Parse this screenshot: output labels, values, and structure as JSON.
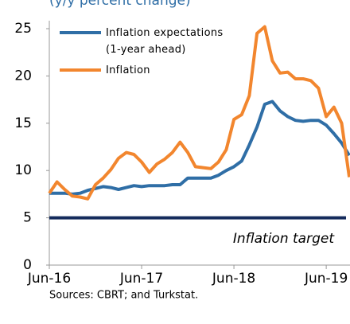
{
  "chart_data": {
    "type": "line",
    "subtitle": "(y/y percent change)",
    "categories": [
      "Jun-16",
      null,
      null,
      null,
      null,
      null,
      null,
      null,
      null,
      null,
      null,
      null,
      "Jun-17",
      null,
      null,
      null,
      null,
      null,
      null,
      null,
      null,
      null,
      null,
      null,
      "Jun-18",
      null,
      null,
      null,
      null,
      null,
      null,
      null,
      null,
      null,
      null,
      null,
      "Jun-19",
      null,
      null,
      null
    ],
    "series": [
      {
        "name": "Inflation expectations\n(1-year ahead)",
        "color": "#2f6ea6",
        "values": [
          7.6,
          7.6,
          7.6,
          7.5,
          7.6,
          7.9,
          8.1,
          8.3,
          8.2,
          8.0,
          8.2,
          8.4,
          8.3,
          8.4,
          8.4,
          8.4,
          8.5,
          8.5,
          9.2,
          9.2,
          9.2,
          9.2,
          9.5,
          10.0,
          10.4,
          11.0,
          12.7,
          14.6,
          17.0,
          17.3,
          16.3,
          15.7,
          15.3,
          15.2,
          15.3,
          15.3,
          14.8,
          13.9,
          12.9,
          11.6
        ]
      },
      {
        "name": "Inflation",
        "color": "#f2862e",
        "values": [
          7.6,
          8.8,
          8.0,
          7.3,
          7.2,
          7.0,
          8.5,
          9.2,
          10.1,
          11.3,
          11.9,
          11.7,
          10.9,
          9.8,
          10.7,
          11.2,
          11.9,
          13.0,
          11.9,
          10.4,
          10.3,
          10.2,
          10.9,
          12.2,
          15.4,
          15.9,
          17.9,
          24.5,
          25.2,
          21.6,
          20.3,
          20.4,
          19.7,
          19.7,
          19.5,
          18.7,
          15.7,
          16.7,
          15.0,
          9.3
        ]
      }
    ],
    "target": {
      "value": 5,
      "label": "Inflation target",
      "color": "#142b5c"
    },
    "ylim": [
      0,
      25
    ],
    "yticks": [
      0,
      5,
      10,
      15,
      20,
      25
    ],
    "source": "Sources: CBRT; and Turkstat."
  }
}
